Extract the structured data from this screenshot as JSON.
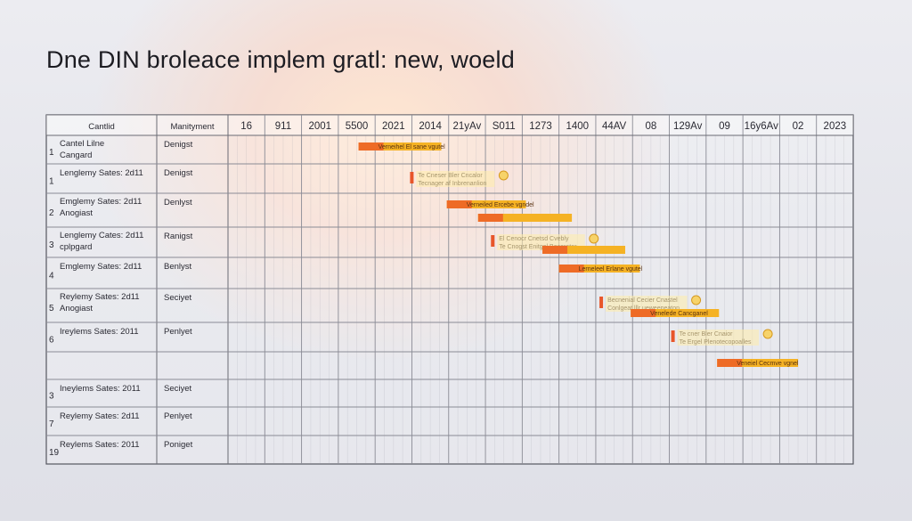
{
  "page": {
    "title": "Dne DIN broleace implem gratl: new, woeld"
  },
  "chart_data": {
    "type": "gantt",
    "columns": {
      "name": "Cantlid",
      "category": "Manityment"
    },
    "timeline": [
      "16",
      "911",
      "2001",
      "5500",
      "2021",
      "2014",
      "21yAv",
      "S011",
      "1273",
      "1400",
      "44AV",
      "08",
      "129Av",
      "09",
      "16y6Av",
      "02",
      "2023"
    ],
    "rows": [
      {
        "index": "1",
        "name": [
          "Cantel Lilne",
          "Cangard"
        ],
        "category": "Denigst"
      },
      {
        "index": "1",
        "name": [
          "Lenglemy Sates: 2d11"
        ],
        "category": "Denigst"
      },
      {
        "index": "2",
        "name": [
          "Emglemy Sates: 2d11",
          "Anogiast"
        ],
        "category": "Denlyst"
      },
      {
        "index": "3",
        "name": [
          "Lenglemy Cates: 2d11",
          "cplpgard"
        ],
        "category": "Ranigst"
      },
      {
        "index": "4",
        "name": [
          "Emglemy Sates: 2d11"
        ],
        "category": "Benlyst"
      },
      {
        "index": "5",
        "name": [
          "Reylemy Sates: 2d11",
          "Anogiast"
        ],
        "category": "Seciyet"
      },
      {
        "index": "6",
        "name": [
          "Ireylems Sates: 2011"
        ],
        "category": "Penlyet"
      },
      {
        "index": "",
        "name": [
          ""
        ],
        "category": ""
      },
      {
        "index": "3",
        "name": [
          "Ineylems Sates: 2011"
        ],
        "category": "Seciyet"
      },
      {
        "index": "7",
        "name": [
          "Reylemy Sates: 2d11"
        ],
        "category": "Penlyet"
      },
      {
        "index": "19",
        "name": [
          "Reylems Sates: 2011"
        ],
        "category": "Poniget"
      }
    ],
    "bars": [
      {
        "row": 0,
        "start": 3.55,
        "end": 5.8,
        "label": [
          "Verneihel El sane vgutel"
        ]
      },
      {
        "row": 1,
        "start": 4.95,
        "end": 5.05,
        "label": [
          "Te Cneser Bler Cncalor",
          "Tecnager af Inbrenanlion"
        ],
        "icon": true
      },
      {
        "row": 2,
        "start": 5.95,
        "end": 8.1,
        "label": [
          "Verneiled Ercebe vgndel"
        ]
      },
      {
        "row": 2.5,
        "start": 6.8,
        "end": 9.35,
        "label": []
      },
      {
        "row": 3,
        "start": 7.15,
        "end": 7.25,
        "label": [
          "El Cenocr Cnetsd Cvebly",
          "Te Cnogst Enitgel Becerator"
        ],
        "icon": true
      },
      {
        "row": 3.5,
        "start": 8.55,
        "end": 10.8,
        "label": []
      },
      {
        "row": 4,
        "start": 9.0,
        "end": 11.2,
        "label": [
          "Lerneleel Erlane vgutel"
        ]
      },
      {
        "row": 5,
        "start": 10.1,
        "end": 10.2,
        "label": [
          "Becnenial Cecier Cnastel",
          "Conlgeat lllr ueweepeaton"
        ],
        "icon": true
      },
      {
        "row": 5.5,
        "start": 10.95,
        "end": 13.35,
        "label": [
          "Venelede Cancganel"
        ]
      },
      {
        "row": 6,
        "start": 12.05,
        "end": 12.15,
        "label": [
          "Te cner Bler Cnaior",
          "Te Ergel Plenotecopoalles"
        ],
        "icon": true
      },
      {
        "row": 7,
        "start": 13.3,
        "end": 15.5,
        "label": [
          "Veneiel Cecmve vgnel"
        ]
      }
    ]
  }
}
